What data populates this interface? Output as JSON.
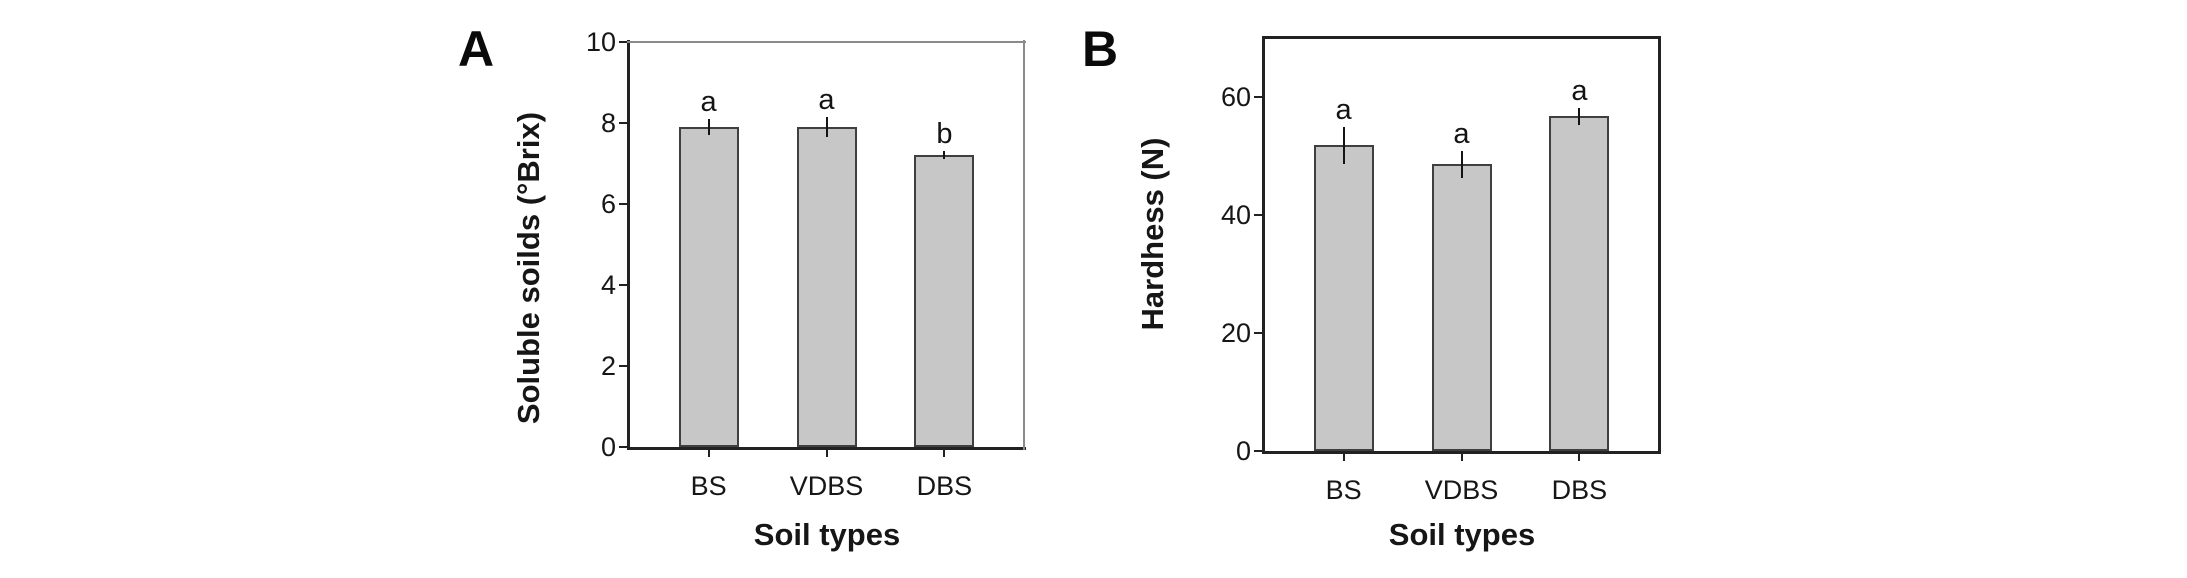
{
  "figure_type": "two-panel vertical bar chart figure",
  "background_color": "#ffffff",
  "chart_data": [
    {
      "type": "bar",
      "panel_label": "A",
      "title": "",
      "categories": [
        "BS",
        "VDBS",
        "DBS"
      ],
      "values": [
        7.9,
        7.9,
        7.2
      ],
      "errors": [
        0.2,
        0.25,
        0.1
      ],
      "sig_letters": [
        "a",
        "a",
        "b"
      ],
      "xlabel": "Soil types",
      "ylabel": "Soluble soilds (°Brix)",
      "ylim": [
        0,
        10
      ],
      "yticks": [
        0,
        2,
        4,
        6,
        8,
        10
      ],
      "grid": false,
      "legend": "none",
      "bar_fill": "#c7c7c7",
      "bar_border": "#3f3f3f",
      "error_bar_style": "symmetric vertical line, no caps"
    },
    {
      "type": "bar",
      "panel_label": "B",
      "title": "",
      "categories": [
        "BS",
        "VDBS",
        "DBS"
      ],
      "values": [
        51.8,
        48.6,
        56.7
      ],
      "errors": [
        3.2,
        2.3,
        1.5
      ],
      "sig_letters": [
        "a",
        "a",
        "a"
      ],
      "xlabel": "Soil types",
      "ylabel": "Hardhess (N)",
      "ylim": [
        0,
        70
      ],
      "yticks": [
        0,
        20,
        40,
        60
      ],
      "grid": false,
      "legend": "none",
      "bar_fill": "#c7c7c7",
      "bar_border": "#3f3f3f",
      "error_bar_style": "symmetric vertical line, no caps"
    }
  ]
}
